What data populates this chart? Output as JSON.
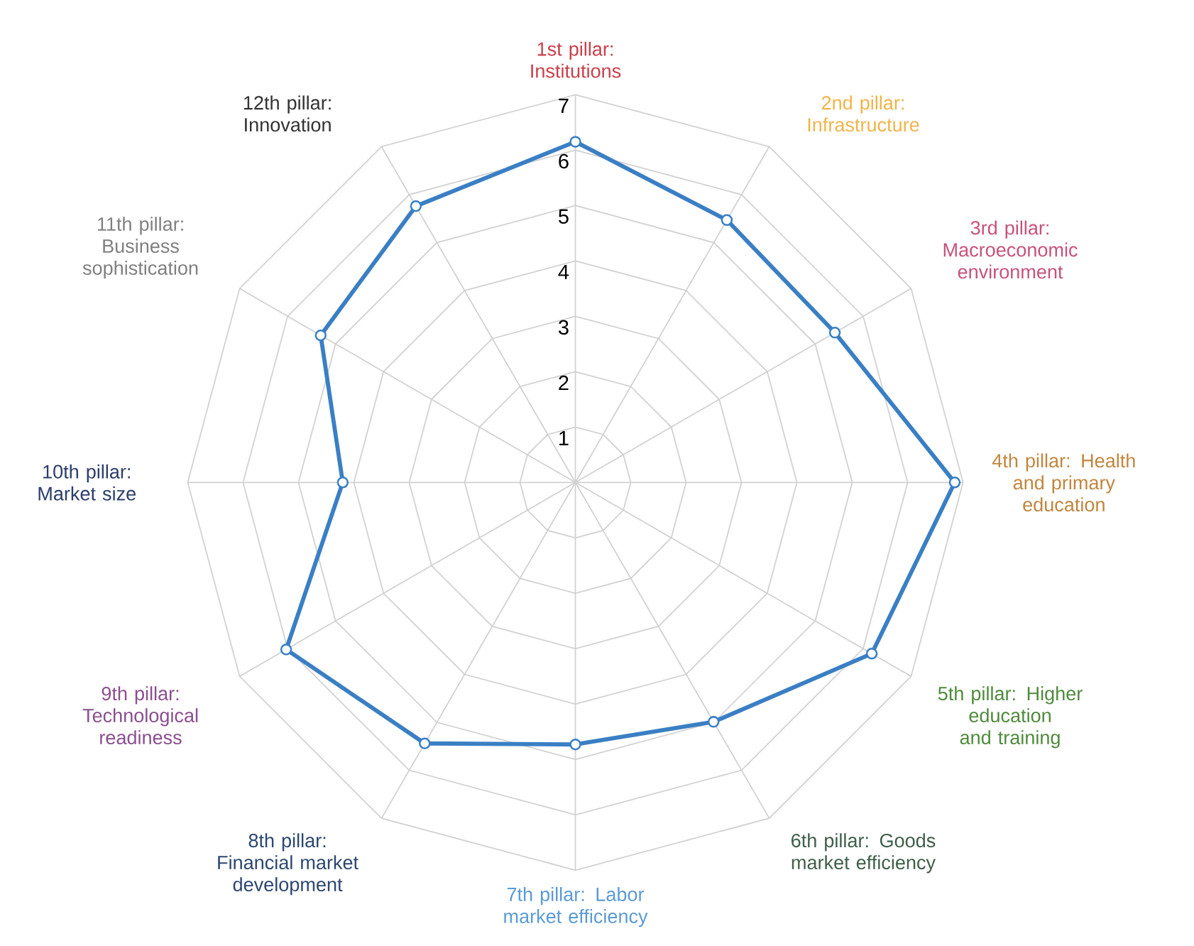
{
  "chart_data": {
    "type": "radar",
    "categories": [
      "1st pillar: Institutions",
      "2nd pillar: Infrastructure",
      "3rd pillar: Macroeconomic environment",
      "4th pillar: Health and primary education",
      "5th pillar: Higher education and training",
      "6th pillar: Goods market efficiency",
      "7th pillar: Labor market efficiency",
      "8th pillar: Financial market development",
      "9th pillar: Technological readiness",
      "10th pillar: Market size",
      "11th pillar: Business sophistication",
      "12th pillar: Innovation"
    ],
    "colors": [
      "#c9404b",
      "#f0b449",
      "#c8527a",
      "#c0863e",
      "#4f8a3c",
      "#3f5f4a",
      "#5b9bd5",
      "#2c4770",
      "#8a4f8f",
      "#2c3e6b",
      "#808080",
      "#333333"
    ],
    "series": [
      {
        "color": "#3a7fc4",
        "values": [
          6.15,
          5.47,
          5.41,
          6.85,
          6.18,
          4.99,
          4.73,
          5.44,
          6.03,
          4.2,
          5.31,
          5.76
        ]
      }
    ],
    "ylim": [
      0,
      7
    ],
    "yticks": [
      1,
      2,
      3,
      4,
      5,
      6,
      7
    ],
    "grid": true,
    "marker": "circle",
    "line_style": "solid"
  }
}
